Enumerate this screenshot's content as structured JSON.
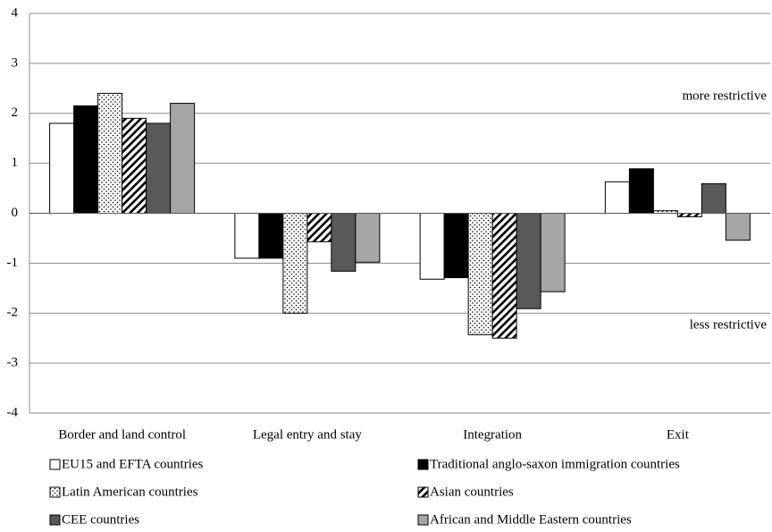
{
  "chart_data": {
    "type": "bar",
    "categories": [
      "Border and land control",
      "Legal entry and stay",
      "Integration",
      "Exit"
    ],
    "series": [
      {
        "name": "EU15 and EFTA countries",
        "color": "#ffffff",
        "values": [
          1.8,
          -0.9,
          -1.32,
          0.63
        ]
      },
      {
        "name": "Traditional anglo-saxon immigration countries",
        "color": "#000000",
        "values": [
          2.15,
          -0.9,
          -1.29,
          0.89
        ]
      },
      {
        "name": "Latin American countries",
        "color": "#ffffff",
        "pattern": "dots",
        "values": [
          2.4,
          -2.0,
          -2.43,
          0.05
        ]
      },
      {
        "name": "Asian countries",
        "color": "#ffffff",
        "pattern": "hatch",
        "values": [
          1.9,
          -0.57,
          -2.5,
          -0.07
        ]
      },
      {
        "name": "CEE countries",
        "color": "#595959",
        "values": [
          1.8,
          -1.16,
          -1.91,
          0.59
        ]
      },
      {
        "name": "African and Middle Eastern countries",
        "color": "#a6a6a6",
        "values": [
          2.2,
          -0.98,
          -1.57,
          -0.54
        ]
      }
    ],
    "ylim": [
      -4,
      4
    ],
    "yticks": [
      -4,
      -3,
      -2,
      -1,
      0,
      1,
      2,
      3,
      4
    ],
    "grid": true,
    "annotations": [
      "more restrictive",
      "less restrictive"
    ]
  }
}
